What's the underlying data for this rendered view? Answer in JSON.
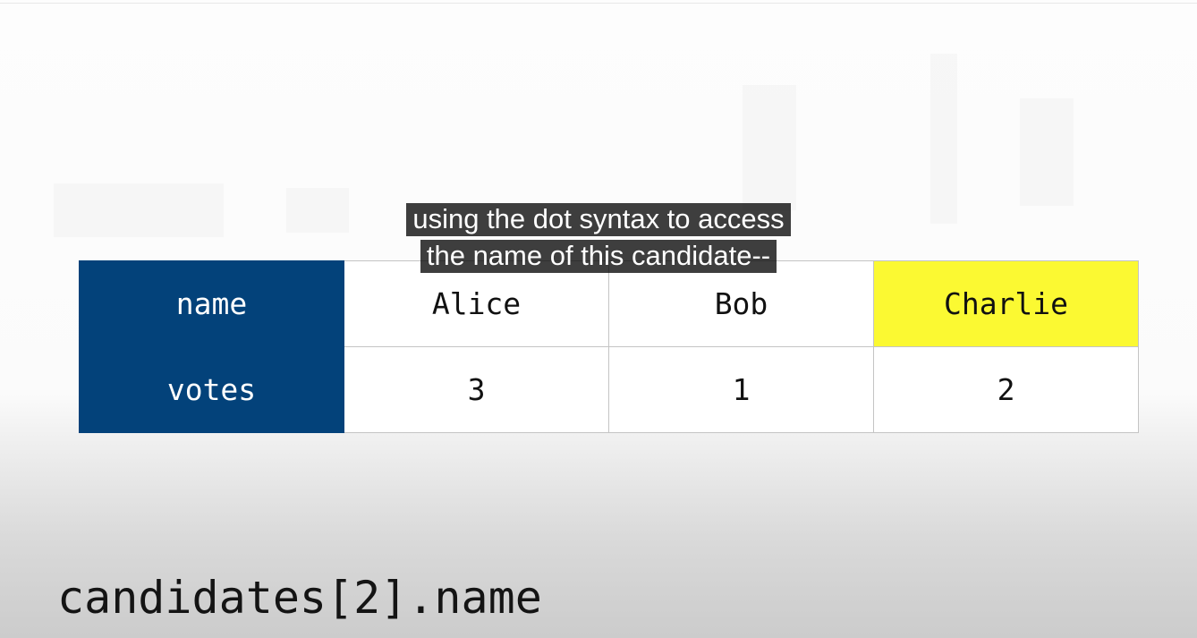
{
  "table": {
    "rows": [
      {
        "header": "name",
        "cells": [
          "Alice",
          "Bob",
          "Charlie"
        ]
      },
      {
        "header": "votes",
        "cells": [
          "3",
          "1",
          "2"
        ]
      }
    ],
    "highlight_color": "#fbf932",
    "header_color": "#03427a"
  },
  "subtitle": {
    "line1": "using the dot syntax to access",
    "line2": "the name of this candidate--"
  },
  "code": {
    "expression": "candidates[2].name"
  }
}
